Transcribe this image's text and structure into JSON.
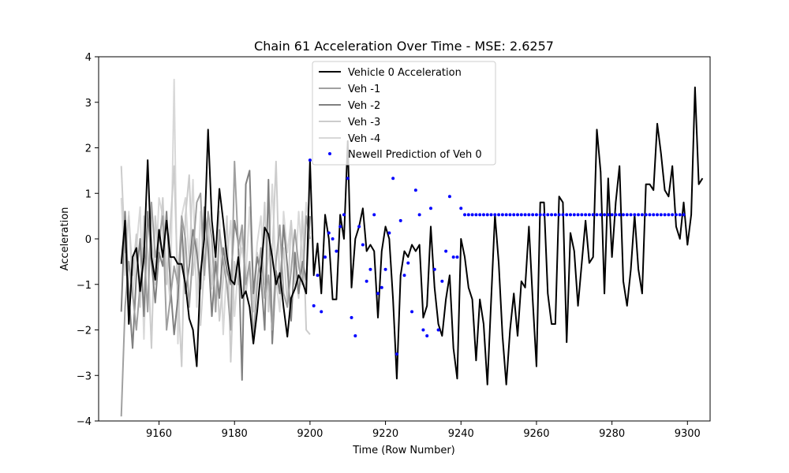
{
  "chart_data": {
    "type": "line",
    "title": "Chain 61 Acceleration Over Time - MSE: 2.6257",
    "xlabel": "Time (Row Number)",
    "ylabel": "Acceleration",
    "xlim": [
      9144,
      9306
    ],
    "ylim": [
      -4,
      4
    ],
    "xticks": [
      9160,
      9180,
      9200,
      9220,
      9240,
      9260,
      9280,
      9300
    ],
    "yticks": [
      -4,
      -3,
      -2,
      -1,
      0,
      1,
      2,
      3,
      4
    ],
    "xtick_labels": [
      "9160",
      "9180",
      "9200",
      "9220",
      "9240",
      "9260",
      "9280",
      "9300"
    ],
    "ytick_labels": [
      "−4",
      "−3",
      "−2",
      "−1",
      "0",
      "1",
      "2",
      "3",
      "4"
    ],
    "grid": false,
    "legend_position": "top-center",
    "series": [
      {
        "name": "Vehicle 0 Acceleration",
        "color": "#000000",
        "style": "line",
        "x_start": 9150,
        "values": [
          -0.55,
          0.4,
          -1.87,
          -0.4,
          -0.2,
          -1.15,
          -0.4,
          1.73,
          -0.4,
          -0.9,
          0.2,
          -0.4,
          0.4,
          -0.4,
          -0.4,
          -0.55,
          -0.55,
          -1.0,
          -1.75,
          -2.0,
          -2.8,
          -0.75,
          0.0,
          2.4,
          0.4,
          -0.4,
          1.1,
          0.4,
          -0.4,
          -0.9,
          -1.0,
          -0.4,
          -1.3,
          -1.15,
          -1.5,
          -2.3,
          -1.6,
          -0.7,
          0.25,
          0.1,
          -0.4,
          -1.0,
          -0.75,
          -1.5,
          -2.15,
          -1.3,
          -1.1,
          -0.8,
          -0.95,
          -1.2,
          1.73,
          -0.8,
          -0.1,
          -1.2,
          0.53,
          0.0,
          -1.33,
          -1.33,
          0.53,
          0.0,
          2.15,
          -1.07,
          0.0,
          0.27,
          0.67,
          -0.27,
          -0.13,
          -0.27,
          -1.73,
          -0.27,
          0.27,
          0.0,
          -1.33,
          -3.07,
          -0.8,
          -0.27,
          -0.4,
          -0.13,
          -0.27,
          -0.13,
          -1.73,
          -1.47,
          0.27,
          -1.07,
          -1.87,
          -2.13,
          -1.33,
          -0.8,
          -2.4,
          -3.07,
          0.0,
          -0.4,
          -1.07,
          -1.33,
          -2.67,
          -1.33,
          -1.87,
          -3.2,
          -1.33,
          0.53,
          -0.53,
          -2.13,
          -3.2,
          -2.0,
          -1.2,
          -2.13,
          -0.93,
          -1.07,
          0.27,
          -1.33,
          -2.8,
          0.8,
          0.8,
          -1.2,
          -1.87,
          -1.87,
          0.93,
          0.8,
          -2.27,
          0.13,
          -0.27,
          -1.47,
          -0.53,
          0.4,
          -0.53,
          -0.4,
          2.4,
          1.47,
          -1.2,
          1.33,
          -0.4,
          0.8,
          1.6,
          -0.93,
          -1.47,
          -0.67,
          0.53,
          -0.67,
          -1.2,
          1.2,
          1.2,
          1.07,
          2.53,
          1.87,
          1.07,
          0.93,
          1.6,
          0.27,
          0.0,
          0.8,
          -0.13,
          0.53,
          3.33,
          1.2,
          1.33
        ]
      },
      {
        "name": "Veh -1",
        "color": "#a0a0a0",
        "style": "line",
        "x_start": 9150,
        "values": [
          -3.9,
          -1.5,
          -0.5,
          -1.2,
          -2.0,
          -1.0,
          -0.2,
          -1.6,
          0.8,
          -0.4,
          0.0,
          0.5,
          -2.0,
          -1.3,
          -0.6,
          -1.0,
          0.5,
          0.0,
          -1.5,
          -0.3,
          0.8,
          1.0,
          -0.8,
          0.6,
          0.0,
          -1.6,
          0.2,
          -0.5,
          -1.0,
          -2.0,
          1.7,
          -0.2,
          0.3,
          -1.0,
          -0.5,
          -2.2,
          -1.0,
          -0.2,
          -1.3,
          -0.8,
          -2.0,
          -0.5,
          0.3,
          -1.2,
          -1.5,
          -0.7,
          0.2,
          -0.6,
          -1.0,
          0.5,
          0.0
        ]
      },
      {
        "name": "Veh -2",
        "color": "#808080",
        "style": "line",
        "x_start": 9150,
        "values": [
          -1.6,
          0.6,
          -1.2,
          -2.4,
          -0.8,
          0.0,
          -1.7,
          0.6,
          -0.5,
          -1.4,
          -0.3,
          -0.6,
          0.6,
          -1.0,
          -2.1,
          -1.3,
          0.3,
          -1.2,
          -0.6,
          0.2,
          -0.3,
          -1.1,
          0.7,
          -0.2,
          -1.7,
          -0.5,
          -1.3,
          -0.2,
          -0.7,
          -1.0,
          0.4,
          -0.1,
          -3.1,
          1.2,
          1.5,
          -1.2,
          -0.4,
          -0.8,
          -2.0,
          1.3,
          -2.3,
          -0.7,
          -1.2,
          0.3,
          -0.6,
          -1.8,
          -0.3,
          -1.2,
          -0.5,
          -0.9,
          0.5
        ]
      },
      {
        "name": "Veh -3",
        "color": "#cccccc",
        "style": "line",
        "x_start": 9150,
        "values": [
          1.6,
          -0.3,
          0.5,
          -0.8,
          0.1,
          -1.5,
          0.5,
          -0.3,
          -2.4,
          0.5,
          -0.5,
          0.9,
          -1.0,
          0.3,
          1.6,
          -1.1,
          -2.8,
          0.5,
          1.4,
          -0.8,
          0.0,
          -1.9,
          -0.6,
          0.4,
          -1.0,
          -0.3,
          -1.8,
          -0.9,
          0.5,
          -2.7,
          -0.5,
          -1.0,
          0.3,
          -1.2,
          -0.6,
          -1.6,
          -0.3,
          -0.8,
          0.8,
          -1.6,
          -0.4,
          1.7,
          -1.1,
          -0.2,
          -1.5,
          0.4,
          -0.7,
          -1.3,
          0.6,
          -2.0,
          -2.1
        ]
      },
      {
        "name": "Veh -4",
        "color": "#d8d8d8",
        "style": "line",
        "x_start": 9150,
        "values": [
          0.9,
          -0.8,
          0.6,
          -1.3,
          -0.2,
          0.7,
          -2.2,
          0.5,
          0.0,
          -1.0,
          0.9,
          0.5,
          -0.6,
          -1.4,
          3.5,
          -2.3,
          0.5,
          0.9,
          -0.5,
          1.3,
          -1.5,
          0.6,
          -0.9,
          0.2,
          -1.1,
          -0.3,
          0.6,
          -2.1,
          -0.5,
          0.4,
          -1.7,
          -0.6,
          -0.2,
          -0.8,
          0.7,
          -1.3,
          -0.1,
          0.5,
          -1.0,
          -0.4,
          1.2,
          -0.9,
          -1.6,
          0.6,
          -0.3,
          0.4,
          -1.0,
          0.6,
          -0.5,
          0.8,
          0.1
        ]
      },
      {
        "name": "Newell Prediction of Veh 0",
        "color": "#0000ff",
        "style": "markers",
        "x_start": 9200,
        "values": [
          1.73,
          -1.47,
          -0.8,
          -1.6,
          -0.4,
          0.13,
          0.0,
          -0.27,
          0.27,
          0.53,
          1.33,
          -1.73,
          -2.13,
          0.27,
          -0.13,
          -0.93,
          -0.67,
          0.53,
          -1.2,
          -1.07,
          -0.67,
          0.13,
          1.33,
          -2.53,
          0.4,
          -0.8,
          -0.53,
          -1.6,
          1.07,
          0.53,
          -2.0,
          -2.13,
          0.67,
          -0.67,
          -2.0,
          -0.93,
          -0.27,
          0.93,
          -0.4,
          -0.4,
          0.67,
          0.53,
          0.53,
          0.53,
          0.53,
          0.53,
          0.53,
          0.53,
          0.53,
          0.53,
          0.53,
          0.53,
          0.53,
          0.53,
          0.53,
          0.53,
          0.53,
          0.53,
          0.53,
          0.53,
          0.53,
          0.53,
          0.53,
          0.53,
          0.53,
          0.53,
          0.53,
          0.53,
          0.53,
          0.53,
          0.53,
          0.53,
          0.53,
          0.53,
          0.53,
          0.53,
          0.53,
          0.53,
          0.53,
          0.53,
          0.53,
          0.53,
          0.53,
          0.53,
          0.53,
          0.53,
          0.53,
          0.53,
          0.53,
          0.53,
          0.53,
          0.53,
          0.53,
          0.53,
          0.53,
          0.53,
          0.53,
          0.53,
          0.53,
          0.53
        ]
      }
    ]
  }
}
